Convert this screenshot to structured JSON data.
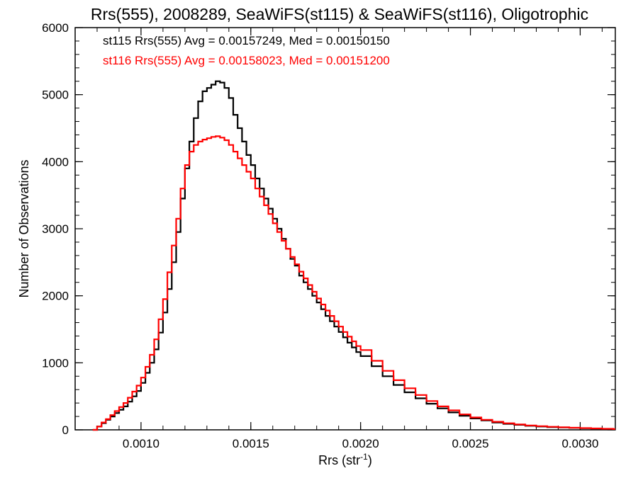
{
  "chart_data": {
    "type": "histogram",
    "title": "Rrs(555), 2008289, SeaWiFS(st115) & SeaWiFS(st116), Oligotrophic",
    "xlabel_main": "Rrs (str",
    "xlabel_sup": "-1",
    "xlabel_close": ")",
    "ylabel": "Number of Observations",
    "xlim": [
      0.0007,
      0.00316
    ],
    "ylim": [
      0,
      6000
    ],
    "x_ticks": [
      0.001,
      0.0015,
      0.002,
      0.0025,
      0.003
    ],
    "x_tick_labels": [
      "0.0010",
      "0.0015",
      "0.0020",
      "0.0025",
      "0.0030"
    ],
    "y_ticks": [
      0,
      1000,
      2000,
      3000,
      4000,
      5000,
      6000
    ],
    "y_tick_labels": [
      "0",
      "1000",
      "2000",
      "3000",
      "4000",
      "5000",
      "6000"
    ],
    "x_minor_step": 0.0001,
    "y_minor_step": 200,
    "grid": false,
    "annotations": [
      {
        "text": "st115 Rrs(555) Avg = 0.00157249, Med = 0.00150150",
        "color": "#000000"
      },
      {
        "text": "st116 Rrs(555) Avg = 0.00158023, Med = 0.00151200",
        "color": "#ff0000"
      }
    ],
    "series": [
      {
        "color": "#000000",
        "x": [
          0.00078,
          0.0008,
          0.00082,
          0.00084,
          0.00086,
          0.00088,
          0.0009,
          0.00092,
          0.00094,
          0.00096,
          0.00098,
          0.001,
          0.00102,
          0.00104,
          0.00106,
          0.00108,
          0.0011,
          0.00112,
          0.00114,
          0.00116,
          0.00118,
          0.0012,
          0.00122,
          0.00124,
          0.00126,
          0.00128,
          0.0013,
          0.00132,
          0.00134,
          0.00136,
          0.00138,
          0.0014,
          0.00142,
          0.00144,
          0.00146,
          0.00148,
          0.0015,
          0.00152,
          0.00154,
          0.00156,
          0.00158,
          0.0016,
          0.00162,
          0.00164,
          0.00166,
          0.00168,
          0.0017,
          0.00172,
          0.00174,
          0.00176,
          0.00178,
          0.0018,
          0.00182,
          0.00184,
          0.00186,
          0.00188,
          0.0019,
          0.00192,
          0.00194,
          0.00196,
          0.00198,
          0.002,
          0.00205,
          0.0021,
          0.00215,
          0.0022,
          0.00225,
          0.0023,
          0.00235,
          0.0024,
          0.00245,
          0.0025,
          0.00255,
          0.0026,
          0.00265,
          0.0027,
          0.00275,
          0.0028,
          0.00285,
          0.0029,
          0.00295,
          0.003,
          0.00305,
          0.0031,
          0.00315
        ],
        "values": [
          0,
          50,
          100,
          150,
          200,
          250,
          300,
          350,
          420,
          500,
          580,
          700,
          850,
          1000,
          1200,
          1450,
          1750,
          2100,
          2500,
          2950,
          3450,
          3900,
          4300,
          4650,
          4900,
          5050,
          5100,
          5150,
          5200,
          5180,
          5100,
          4950,
          4700,
          4500,
          4300,
          4100,
          3950,
          3750,
          3600,
          3450,
          3300,
          3150,
          3000,
          2850,
          2700,
          2550,
          2450,
          2300,
          2200,
          2100,
          2000,
          1900,
          1800,
          1700,
          1620,
          1540,
          1460,
          1380,
          1300,
          1230,
          1160,
          1100,
          950,
          800,
          670,
          560,
          470,
          390,
          320,
          260,
          210,
          170,
          140,
          110,
          90,
          75,
          60,
          50,
          40,
          35,
          30,
          25,
          20,
          15,
          10
        ]
      },
      {
        "color": "#ff0000",
        "x": [
          0.00078,
          0.0008,
          0.00082,
          0.00084,
          0.00086,
          0.00088,
          0.0009,
          0.00092,
          0.00094,
          0.00096,
          0.00098,
          0.001,
          0.00102,
          0.00104,
          0.00106,
          0.00108,
          0.0011,
          0.00112,
          0.00114,
          0.00116,
          0.00118,
          0.0012,
          0.00122,
          0.00124,
          0.00126,
          0.00128,
          0.0013,
          0.00132,
          0.00134,
          0.00136,
          0.00138,
          0.0014,
          0.00142,
          0.00144,
          0.00146,
          0.00148,
          0.0015,
          0.00152,
          0.00154,
          0.00156,
          0.00158,
          0.0016,
          0.00162,
          0.00164,
          0.00166,
          0.00168,
          0.0017,
          0.00172,
          0.00174,
          0.00176,
          0.00178,
          0.0018,
          0.00182,
          0.00184,
          0.00186,
          0.00188,
          0.0019,
          0.00192,
          0.00194,
          0.00196,
          0.00198,
          0.002,
          0.00205,
          0.0021,
          0.00215,
          0.0022,
          0.00225,
          0.0023,
          0.00235,
          0.0024,
          0.00245,
          0.0025,
          0.00255,
          0.0026,
          0.00265,
          0.0027,
          0.00275,
          0.0028,
          0.00285,
          0.0029,
          0.00295,
          0.003,
          0.00305,
          0.0031,
          0.00315
        ],
        "values": [
          0,
          50,
          110,
          160,
          220,
          280,
          340,
          400,
          480,
          570,
          660,
          780,
          940,
          1120,
          1350,
          1650,
          1950,
          2350,
          2750,
          3150,
          3600,
          3950,
          4150,
          4250,
          4300,
          4330,
          4350,
          4370,
          4380,
          4360,
          4320,
          4250,
          4150,
          4050,
          3950,
          3850,
          3750,
          3600,
          3480,
          3350,
          3220,
          3080,
          2950,
          2820,
          2700,
          2580,
          2470,
          2360,
          2260,
          2160,
          2060,
          1960,
          1870,
          1780,
          1700,
          1620,
          1540,
          1460,
          1390,
          1320,
          1250,
          1190,
          1030,
          880,
          740,
          620,
          520,
          430,
          350,
          290,
          230,
          185,
          150,
          120,
          98,
          80,
          65,
          55,
          45,
          38,
          32,
          26,
          21,
          16,
          12
        ]
      }
    ]
  }
}
